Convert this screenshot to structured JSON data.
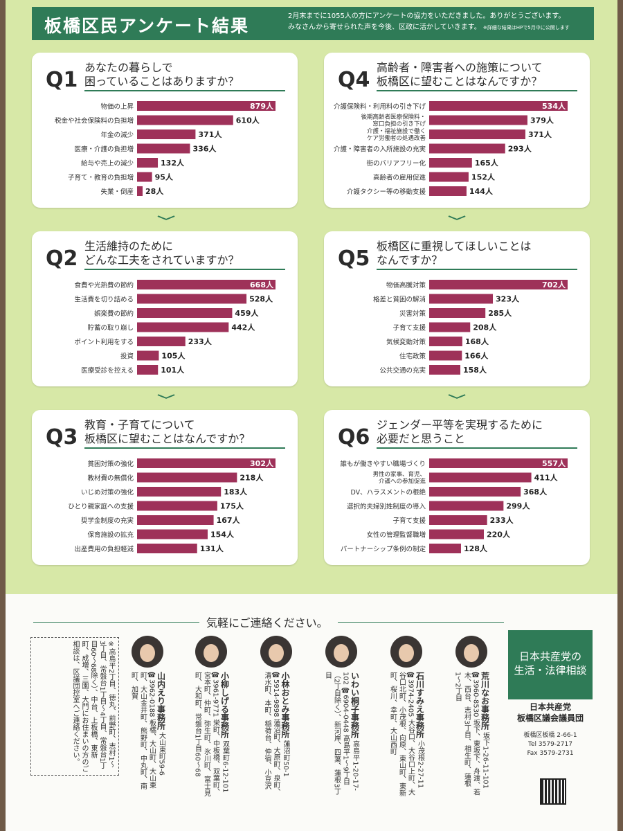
{
  "header": {
    "title": "板橋区民アンケート結果",
    "desc_line1": "2月末までに1055人の方にアンケートの協力をいただきました。ありがとうございます。",
    "desc_line2": "みなさんから寄せられた声を今後、区政に活かしていきます。",
    "desc_note": "※詳細な結果はHPで5月中に公開します"
  },
  "colors": {
    "bar": "#9e3159",
    "accent": "#2f7b57",
    "background": "#d7e8a7"
  },
  "questions": [
    {
      "num": "Q1",
      "title": [
        "あなたの暮らしで",
        "困っていることはありますか？"
      ]
    },
    {
      "num": "Q2",
      "title": [
        "生活維持のために",
        "どんな工夫をされていますか？"
      ]
    },
    {
      "num": "Q3",
      "title": [
        "教育・子育てについて",
        "板橋区に望むことはなんですか？"
      ]
    },
    {
      "num": "Q4",
      "title": [
        "高齢者・障害者への施策について",
        "板橋区に望むことはなんですか？"
      ]
    },
    {
      "num": "Q5",
      "title": [
        "板橋区に重視してほしいことは",
        "なんですか？"
      ]
    },
    {
      "num": "Q6",
      "title": [
        "ジェンダー平等を実現するために",
        "必要だと思うこと"
      ]
    }
  ],
  "chart_data": [
    {
      "type": "bar",
      "orientation": "horizontal",
      "question": "Q1",
      "unit": "人",
      "categories": [
        [
          "物価の上昇"
        ],
        [
          "税金や社会保険料の負担増"
        ],
        [
          "年金の減少"
        ],
        [
          "医療・介護の負担増"
        ],
        [
          "給与や売上の減少"
        ],
        [
          "子育て・教育の負担増"
        ],
        [
          "失業・倒産"
        ]
      ],
      "values": [
        879,
        610,
        371,
        336,
        132,
        95,
        28
      ],
      "xlim": [
        0,
        879
      ]
    },
    {
      "type": "bar",
      "orientation": "horizontal",
      "question": "Q2",
      "unit": "人",
      "categories": [
        [
          "食費や光熱費の節約"
        ],
        [
          "生活費を切り詰める"
        ],
        [
          "娯楽費の節約"
        ],
        [
          "貯蓄の取り崩し"
        ],
        [
          "ポイント利用をする"
        ],
        [
          "投資"
        ],
        [
          "医療受診を控える"
        ]
      ],
      "values": [
        668,
        528,
        459,
        442,
        233,
        105,
        101
      ],
      "xlim": [
        0,
        668
      ]
    },
    {
      "type": "bar",
      "orientation": "horizontal",
      "question": "Q3",
      "unit": "人",
      "categories": [
        [
          "貧困対策の強化"
        ],
        [
          "教材費の無償化"
        ],
        [
          "いじめ対策の強化"
        ],
        [
          "ひとり親家庭への支援"
        ],
        [
          "奨学金制度の充実"
        ],
        [
          "保育施設の拡充"
        ],
        [
          "出産費用の負担軽減"
        ]
      ],
      "values": [
        302,
        218,
        183,
        175,
        167,
        154,
        131
      ],
      "xlim": [
        0,
        302
      ]
    },
    {
      "type": "bar",
      "orientation": "horizontal",
      "question": "Q4",
      "unit": "人",
      "categories": [
        [
          "介護保険料・利用料の引き下げ"
        ],
        [
          "後期高齢者医療保険料・",
          "窓口負担の引き下げ"
        ],
        [
          "介護・福祉施設で働く",
          "ケア労働者の処遇改善"
        ],
        [
          "介護・障害者の入所施設の充実"
        ],
        [
          "街のバリアフリー化"
        ],
        [
          "高齢者の雇用促進"
        ],
        [
          "介護タクシー等の移動支援"
        ]
      ],
      "values": [
        534,
        379,
        371,
        293,
        165,
        152,
        144
      ],
      "xlim": [
        0,
        534
      ]
    },
    {
      "type": "bar",
      "orientation": "horizontal",
      "question": "Q5",
      "unit": "人",
      "categories": [
        [
          "物価高騰対策"
        ],
        [
          "格差と貧困の解消"
        ],
        [
          "災害対策"
        ],
        [
          "子育て支援"
        ],
        [
          "気候変動対策"
        ],
        [
          "住宅政策"
        ],
        [
          "公共交通の充実"
        ]
      ],
      "values": [
        702,
        323,
        285,
        208,
        168,
        166,
        158
      ],
      "xlim": [
        0,
        702
      ]
    },
    {
      "type": "bar",
      "orientation": "horizontal",
      "question": "Q6",
      "unit": "人",
      "categories": [
        [
          "誰もが働きやすい職場づくり"
        ],
        [
          "男性の家事、育児、",
          "介護への参加促進"
        ],
        [
          "DV、ハラスメントの根絶"
        ],
        [
          "選択的夫婦別姓制度の導入"
        ],
        [
          "子育て支援"
        ],
        [
          "女性の管理監督職増"
        ],
        [
          "パートナーシップ条例の制定"
        ]
      ],
      "values": [
        557,
        411,
        368,
        299,
        233,
        220,
        128
      ],
      "xlim": [
        0,
        557
      ]
    }
  ],
  "contact": {
    "title": "気軽にご連絡ください。",
    "note": "※高島平2丁目、徳丸、前野町、志村1〜3丁目、常盤台1丁目〜4丁目、常盤台1丁目60〜68除く）、中台、上板橋、東新町、成増、三園、大門にお住まいの方のご相談は、区議団控室へご連絡ください。",
    "offices": [
      {
        "name": "山内えり事務所",
        "address": "大山東町59-6",
        "tel": "☎3962-0188",
        "area": "板橋、大山町、大山東町、大山金井町、熊野町、中丸町、南町、加賀"
      },
      {
        "name": "小柳しげる事務所",
        "address": "双葉町6-12-101",
        "tel": "☎3961-9771",
        "area": "栄町、中板橋、双葉町、宮本町、仲町、弥生町、氷川町、富士見町、大和町、常盤台1丁目60〜68"
      },
      {
        "name": "小林おとみ事務所",
        "address": "蓮沼町50-1",
        "tel": "☎5914-9898",
        "area": "蓮沼町、大原町、泉町、清水町、本町、稲荷台、仲宿、小豆沢"
      },
      {
        "name": "いわい桐子事務所",
        "address": "高島平1-20-17-102",
        "tel": "☎6904-0448",
        "area": "高島平1〜9丁目（2丁目除く）、新河岸、四葉、蓮根3丁目"
      },
      {
        "name": "石川すみえ事務所",
        "address": "小茂根2-27-11",
        "tel": "☎3974-2405",
        "area": "大谷口、大谷口上町、大谷口北町、小茂根、向原、東山町、東新町、桜川、幸町、大山西町"
      },
      {
        "name": "荒川なお事務所",
        "address": "坂下1-26-11-101",
        "tel": "☎3960-8530",
        "area": "坂下、東坂下、舟渡、若木、西台、志村3丁目、相生町、蓮根1〜2丁目"
      }
    ],
    "consult": {
      "title": [
        "日本共産党の",
        "生活・法律相談"
      ],
      "org": [
        "日本共産党",
        "板橋区議会議員団"
      ],
      "address": "板橋区板橋 2-66-1",
      "tel": "Tel 3579-2717",
      "fax": "Fax 3579-2731"
    }
  }
}
